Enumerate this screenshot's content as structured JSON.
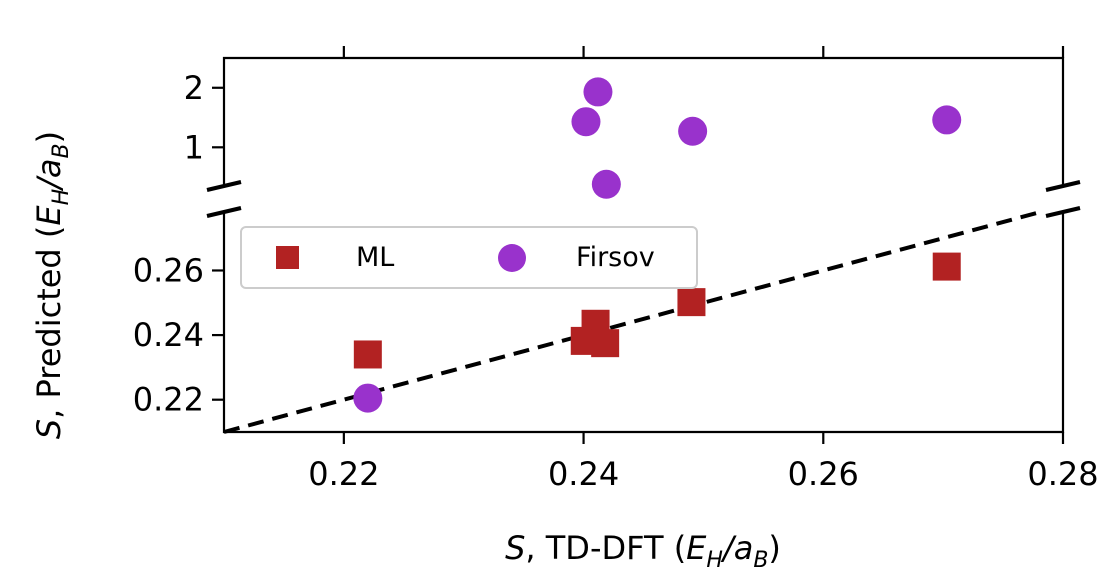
{
  "chart_data": {
    "type": "scatter",
    "xlabel": {
      "var": "S",
      "rest": ", TD-DFT (",
      "e": "E",
      "esub": "H",
      "slash": "/a",
      "asub": "B",
      "close": ")"
    },
    "ylabel": {
      "var": "S",
      "rest": ", Predicted (",
      "e": "E",
      "esub": "H",
      "slash": "/a",
      "asub": "B",
      "close": ")"
    },
    "xlim": [
      0.21,
      0.28
    ],
    "x_ticks": [
      "0.22",
      "0.24",
      "0.26",
      "0.28"
    ],
    "x_tick_values": [
      0.22,
      0.24,
      0.26,
      0.28
    ],
    "upper_panel": {
      "ylim": [
        0.35,
        2.5
      ],
      "y_ticks": [
        "1",
        "2"
      ],
      "y_tick_values": [
        1,
        2
      ]
    },
    "lower_panel": {
      "ylim": [
        0.21,
        0.2781
      ],
      "y_ticks": [
        "0.22",
        "0.24",
        "0.26"
      ],
      "y_tick_values": [
        0.22,
        0.24,
        0.26
      ]
    },
    "broken_axis": true,
    "reference_line": "y = x",
    "legend": {
      "placement": "upper-left of lower panel",
      "columns": 2
    },
    "series": [
      {
        "name": "ML",
        "marker": "square",
        "color": "#b22222",
        "x": [
          0.222,
          0.2401,
          0.241,
          0.2418,
          0.249,
          0.2703
        ],
        "y": [
          0.234,
          0.2382,
          0.2435,
          0.2375,
          0.2502,
          0.2612
        ]
      },
      {
        "name": "Firsov",
        "marker": "circle",
        "color": "#9932cc",
        "x": [
          0.222
        ],
        "y": [
          0.2205
        ],
        "x_upper": [
          0.2402,
          0.2412,
          0.2419,
          0.2491,
          0.2703
        ],
        "y_upper": [
          1.43,
          1.93,
          0.38,
          1.27,
          1.46
        ]
      }
    ]
  }
}
